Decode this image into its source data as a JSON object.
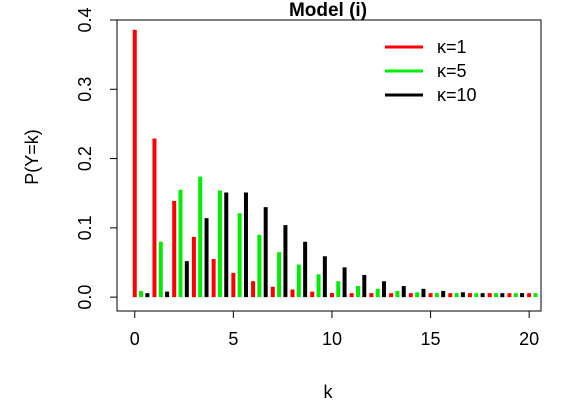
{
  "chart_data": {
    "type": "bar",
    "title": "Model (i)",
    "xlabel": "k",
    "ylabel": "P(Y=k)",
    "xlim": [
      -0.9,
      20.6
    ],
    "ylim": [
      -0.02,
      0.4
    ],
    "x_ticks": [
      0,
      5,
      10,
      15,
      20
    ],
    "y_ticks": [
      0.0,
      0.1,
      0.2,
      0.3,
      0.4
    ],
    "x_tick_labels": [
      "0",
      "5",
      "10",
      "15",
      "20"
    ],
    "y_tick_labels": [
      "0.0",
      "0.1",
      "0.2",
      "0.3",
      "0.4"
    ],
    "legend_position": "top-right",
    "grid": false,
    "x": [
      0,
      1,
      2,
      3,
      4,
      5,
      6,
      7,
      8,
      9,
      10,
      11,
      12,
      13,
      14,
      15,
      16,
      17,
      18,
      19,
      20
    ],
    "series": [
      {
        "name": "κ=1",
        "color": "#ff0000",
        "values": [
          0.386,
          0.229,
          0.139,
          0.087,
          0.055,
          0.035,
          0.023,
          0.015,
          0.011,
          0.008,
          0.006,
          0.005,
          0.004,
          0.003,
          0.003,
          0.002,
          0.002,
          0.002,
          0.001,
          0.001,
          0.001
        ]
      },
      {
        "name": "κ=5",
        "color": "#00ee00",
        "values": [
          0.009,
          0.08,
          0.155,
          0.174,
          0.154,
          0.121,
          0.09,
          0.065,
          0.047,
          0.033,
          0.023,
          0.016,
          0.012,
          0.009,
          0.007,
          0.005,
          0.004,
          0.003,
          0.002,
          0.002,
          0.001
        ]
      },
      {
        "name": "κ=10",
        "color": "#000000",
        "values": [
          0.001,
          0.008,
          0.052,
          0.114,
          0.151,
          0.151,
          0.13,
          0.104,
          0.08,
          0.059,
          0.043,
          0.032,
          0.023,
          0.016,
          0.012,
          0.009,
          0.007,
          0.005,
          0.004,
          0.003,
          0.003
        ]
      }
    ]
  }
}
